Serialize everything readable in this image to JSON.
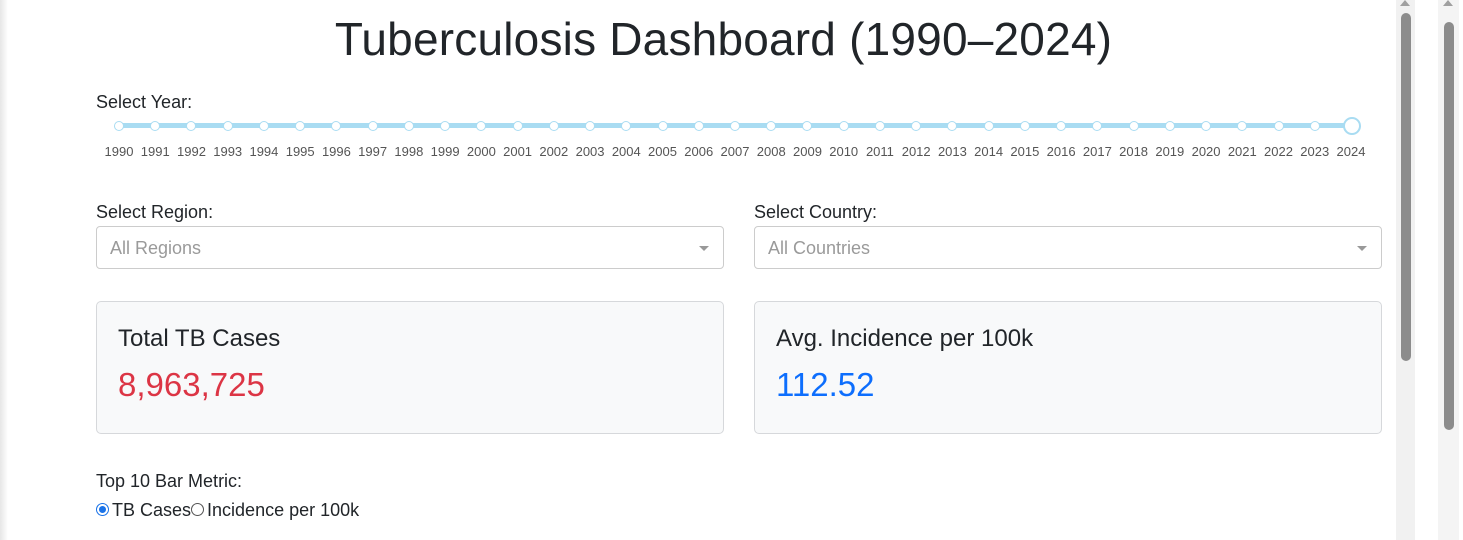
{
  "page": {
    "title": "Tuberculosis Dashboard (1990–2024)"
  },
  "year_slider": {
    "label": "Select Year:",
    "min": 1990,
    "max": 2024,
    "selected": 2024,
    "ticks": [
      "1990",
      "1991",
      "1992",
      "1993",
      "1994",
      "1995",
      "1996",
      "1997",
      "1998",
      "1999",
      "2000",
      "2001",
      "2002",
      "2003",
      "2004",
      "2005",
      "2006",
      "2007",
      "2008",
      "2009",
      "2010",
      "2011",
      "2012",
      "2013",
      "2014",
      "2015",
      "2016",
      "2017",
      "2018",
      "2019",
      "2020",
      "2021",
      "2022",
      "2023",
      "2024"
    ]
  },
  "region": {
    "label": "Select Region:",
    "placeholder": "All Regions"
  },
  "country": {
    "label": "Select Country:",
    "placeholder": "All Countries"
  },
  "cards": {
    "total_cases": {
      "title": "Total TB Cases",
      "value": "8,963,725",
      "color": "#dc3545"
    },
    "avg_incidence": {
      "title": "Avg. Incidence per 100k",
      "value": "112.52",
      "color": "#0d6efd"
    }
  },
  "bar_metric": {
    "label": "Top 10 Bar Metric:",
    "options": [
      "TB Cases",
      "Incidence per 100k"
    ],
    "selected": "TB Cases"
  },
  "colors": {
    "slider_track": "#a9dcf2",
    "radio_selected": "#1a73e8"
  }
}
